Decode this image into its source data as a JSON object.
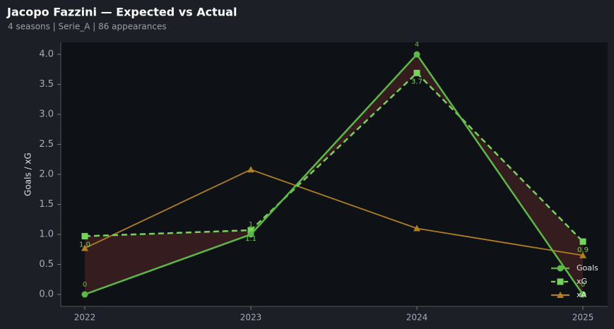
{
  "chart_data": {
    "type": "line",
    "title": "Jacopo Fazzini — Expected vs Actual",
    "subtitle": "4 seasons | Serie_A | 86 appearances",
    "y_label": "Goals / xG",
    "categories": [
      "2022",
      "2023",
      "2024",
      "2025"
    ],
    "series": [
      {
        "name": "Goals",
        "color": "#5cb947",
        "values": [
          0,
          1,
          4,
          0
        ],
        "marker": "circle",
        "dash": false,
        "labels": true
      },
      {
        "name": "xG",
        "color": "#78d25c",
        "values": [
          0.97,
          1.07,
          3.69,
          0.88
        ],
        "value_labels": [
          "1.0",
          "1.1",
          "3.7",
          "0.9"
        ],
        "marker": "square",
        "dash": true,
        "labels": true
      },
      {
        "name": "xA",
        "color": "#b07f22",
        "values": [
          0.77,
          2.08,
          1.1,
          0.65
        ],
        "marker": "triangle",
        "dash": false,
        "labels": false
      }
    ],
    "fill_color": "#3a1e20",
    "ylim": [
      -0.2,
      4.2
    ],
    "yticks": [
      {
        "value": 0,
        "label": "0.0"
      },
      {
        "value": 0.5,
        "label": "0.5"
      },
      {
        "value": 1,
        "label": "1.0"
      },
      {
        "value": 1.5,
        "label": "1.5"
      },
      {
        "value": 2,
        "label": "2.0"
      },
      {
        "value": 2.5,
        "label": "2.5"
      },
      {
        "value": 3,
        "label": "3.0"
      },
      {
        "value": 3.5,
        "label": "3.5"
      },
      {
        "value": 4,
        "label": "4.0"
      }
    ],
    "legend": "lower right"
  }
}
